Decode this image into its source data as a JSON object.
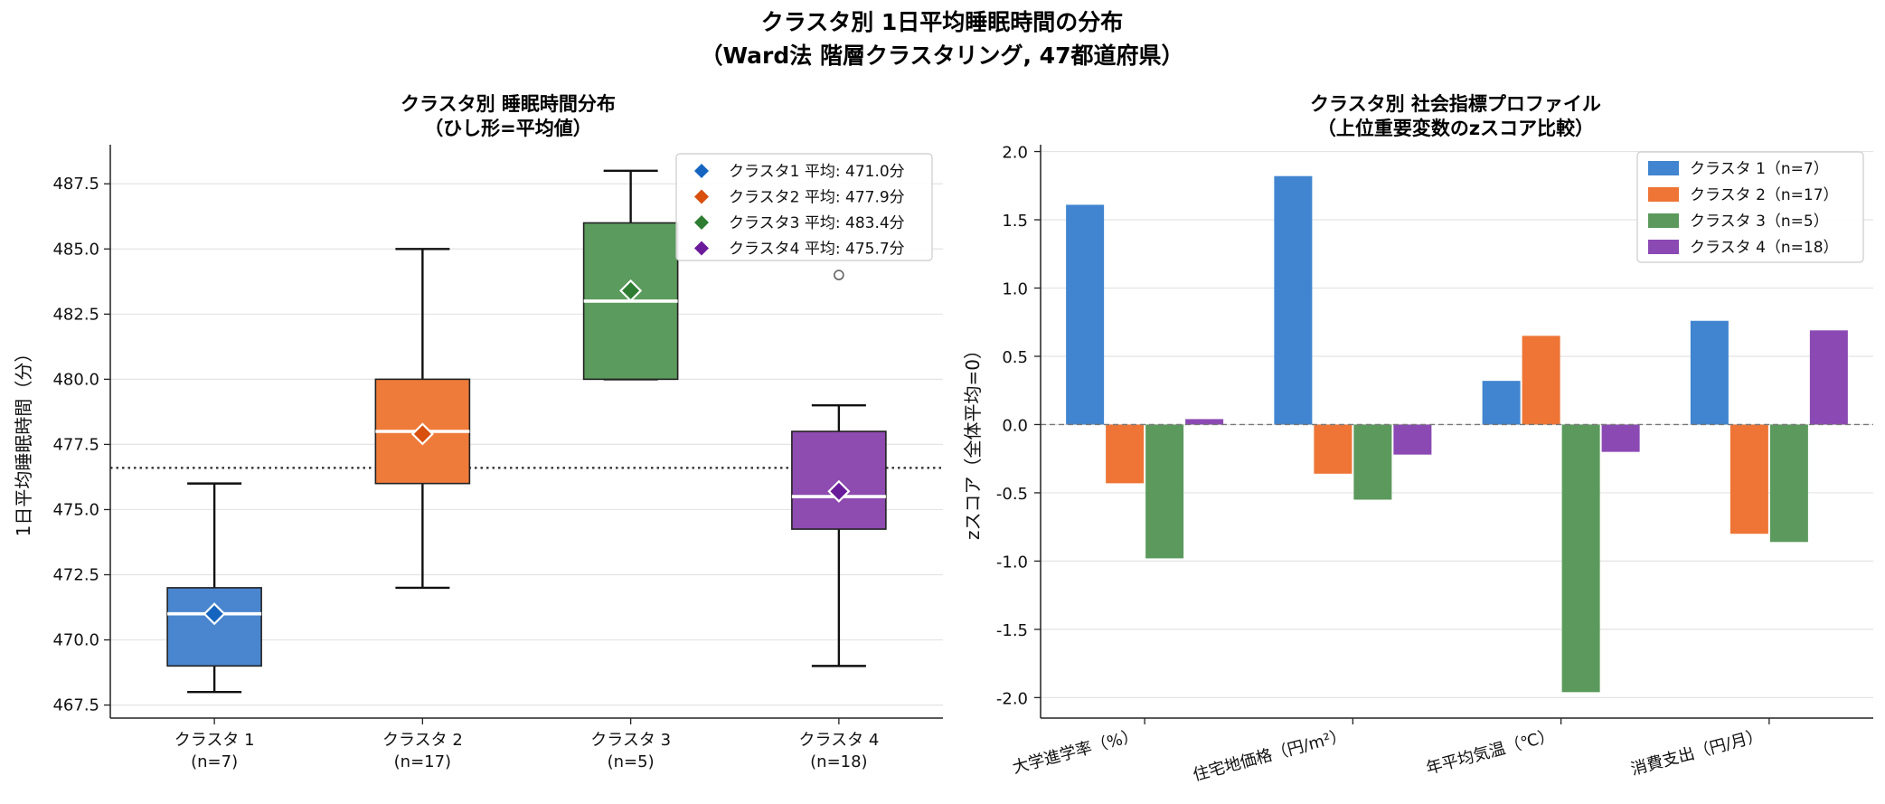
{
  "figure": {
    "title_line1": "クラスタ別 1日平均睡眠時間の分布",
    "title_line2": "（Ward法 階層クラスタリング, 47都道府県）"
  },
  "chart_data": [
    {
      "type": "box",
      "title_line1": "クラスタ別 睡眠時間分布",
      "title_line2": "（ひし形=平均値）",
      "ylabel": "1日平均睡眠時間（分）",
      "ylim": [
        467,
        489
      ],
      "yticks": [
        "467.5",
        "470.0",
        "472.5",
        "475.0",
        "477.5",
        "480.0",
        "482.5",
        "485.0",
        "487.5"
      ],
      "overall_mean_line": 476.6,
      "grid": "horizontal",
      "legend_position": "top-right",
      "groups": [
        {
          "label_line1": "クラスタ 1",
          "label_line2": "(n=7)",
          "color": "#4a86cf",
          "mean_color": "#1565c0",
          "whisker_low": 468,
          "q1": 469,
          "median": 471,
          "q3": 472,
          "whisker_high": 476,
          "mean": 471.0,
          "outliers": [],
          "legend": "クラスタ1 平均: 471.0分"
        },
        {
          "label_line1": "クラスタ 2",
          "label_line2": "(n=17)",
          "color": "#ef7b3a",
          "mean_color": "#d84f0e",
          "whisker_low": 472,
          "q1": 476,
          "median": 478,
          "q3": 480,
          "whisker_high": 485,
          "mean": 477.9,
          "outliers": [],
          "legend": "クラスタ2 平均: 477.9分"
        },
        {
          "label_line1": "クラスタ 3",
          "label_line2": "(n=5)",
          "color": "#5b9b5d",
          "mean_color": "#2e7d32",
          "whisker_low": 480,
          "q1": 480,
          "median": 483,
          "q3": 486,
          "whisker_high": 488,
          "mean": 483.4,
          "outliers": [],
          "legend": "クラスタ3 平均: 483.4分"
        },
        {
          "label_line1": "クラスタ 4",
          "label_line2": "(n=18)",
          "color": "#8e4bb0",
          "mean_color": "#6a1b9a",
          "whisker_low": 469,
          "q1": 474.25,
          "median": 475.5,
          "q3": 478,
          "whisker_high": 479,
          "mean": 475.7,
          "outliers": [
            484
          ],
          "legend": "クラスタ4 平均: 475.7分"
        }
      ]
    },
    {
      "type": "bar",
      "title_line1": "クラスタ別 社会指標プロファイル",
      "title_line2": "（上位重要変数のzスコア比較）",
      "ylabel": "zスコア（全体平均=0）",
      "ylim": [
        -2.15,
        2.05
      ],
      "yticks": [
        -2.0,
        -1.5,
        -1.0,
        -0.5,
        0.0,
        0.5,
        1.0,
        1.5,
        2.0
      ],
      "grid": "horizontal",
      "legend_position": "top-right",
      "categories": [
        "大学進学率（%）",
        "住宅地価格（円/m²）",
        "年平均気温（℃）",
        "消費支出（円/月）"
      ],
      "series": [
        {
          "name": "クラスタ 1（n=7）",
          "color": "#4185d0",
          "values": [
            1.61,
            1.82,
            0.32,
            0.76
          ]
        },
        {
          "name": "クラスタ 2（n=17）",
          "color": "#ee7535",
          "values": [
            -0.43,
            -0.36,
            0.65,
            -0.8
          ]
        },
        {
          "name": "クラスタ 3（n=5）",
          "color": "#5b9a5c",
          "values": [
            -0.98,
            -0.55,
            -1.96,
            -0.86
          ]
        },
        {
          "name": "クラスタ 4（n=18）",
          "color": "#8b49b3",
          "values": [
            0.04,
            -0.22,
            -0.2,
            0.69
          ]
        }
      ]
    }
  ]
}
